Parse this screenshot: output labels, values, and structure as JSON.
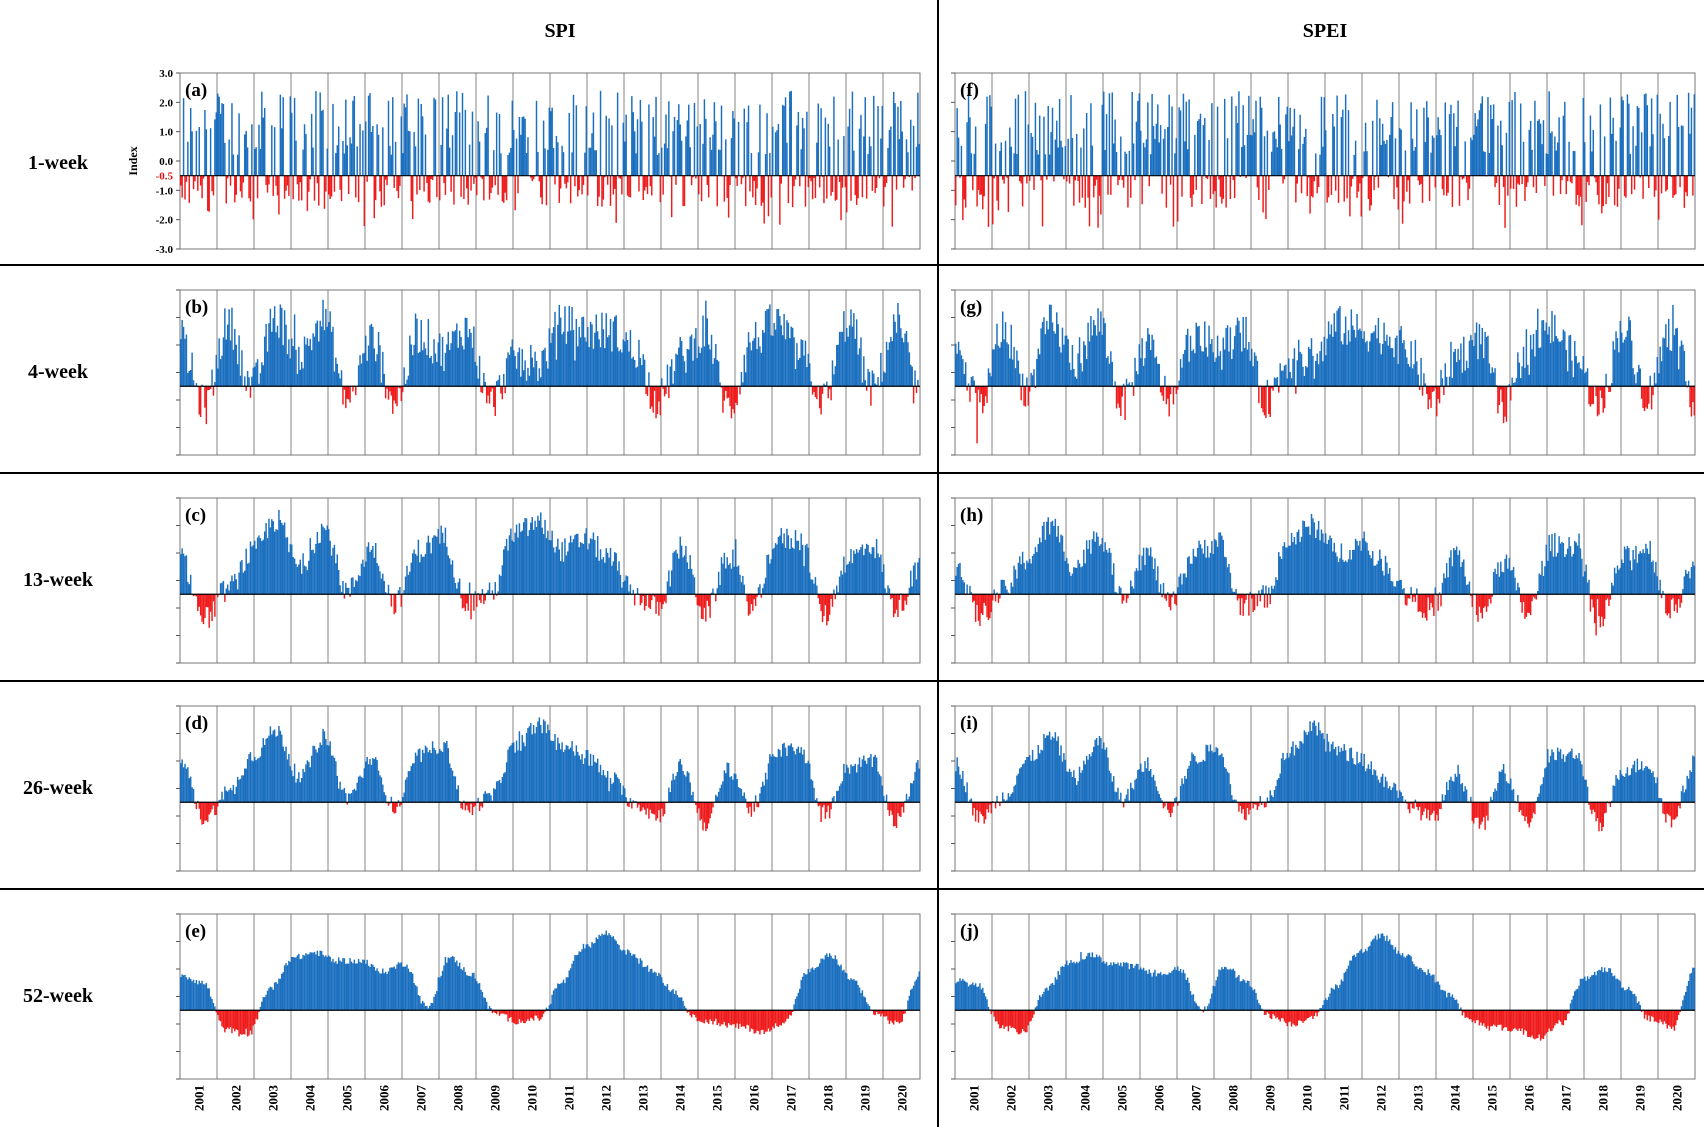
{
  "figure": {
    "column_titles": [
      "SPI",
      "SPEI"
    ],
    "row_labels": [
      "1-week",
      "4-week",
      "13-week",
      "26-week",
      "52-week"
    ],
    "panel_letters": [
      [
        "(a)",
        "(b)",
        "(c)",
        "(d)",
        "(e)"
      ],
      [
        "(f)",
        "(g)",
        "(h)",
        "(i)",
        "(j)"
      ]
    ],
    "y_axis_label": "Index",
    "y_ticks": [
      "3.0",
      "2.0",
      "1.0",
      "0.0",
      "-1.0",
      "-2.0",
      "-3.0"
    ],
    "threshold_label": "-0.5",
    "years": [
      "2001",
      "2002",
      "2003",
      "2004",
      "2005",
      "2006",
      "2007",
      "2008",
      "2009",
      "2010",
      "2011",
      "2012",
      "2013",
      "2014",
      "2015",
      "2016",
      "2017",
      "2018",
      "2019",
      "2020"
    ],
    "colors": {
      "wet": "#1a6fbf",
      "dry": "#ee1c1c",
      "threshold_text": "#e01010"
    }
  },
  "chart_data": {
    "type": "bar",
    "x_axis": "week (2001-2020)",
    "ylim": [
      -3.0,
      3.0
    ],
    "baseline": -0.5,
    "note": "Bars extend from the -0.5 threshold line: blue above, red below. Values are weekly index values at approximately 2-week resolution; series below are anchor points per ~2 months, estimated from the figure envelope.",
    "series": [
      {
        "name": "SPI 1-week",
        "panel": "(a)",
        "anchors": [
          1.2,
          -0.9,
          1.8,
          -1.0,
          1.5,
          -1.2,
          1.9,
          -0.8,
          1.4,
          -1.1,
          1.7,
          -1.0,
          1.6,
          -0.9,
          1.3,
          -1.2,
          1.8,
          -1.0,
          1.5,
          -1.1,
          1.6,
          -0.9,
          1.4,
          -1.0
        ]
      },
      {
        "name": "SPI 4-week",
        "panel": "(b)",
        "anchors": [
          1.0,
          -1.2,
          1.8,
          -0.5,
          2.0,
          0.6,
          2.0,
          -1.0,
          1.2,
          -1.0,
          1.4,
          0.8,
          1.6,
          -1.1,
          0.5,
          0.3,
          1.8,
          1.5,
          1.5,
          0.9,
          -1.0,
          0.6,
          1.5,
          -1.3,
          1.2,
          1.8,
          0.6,
          -1.0,
          1.9,
          -0.6,
          1.6,
          -0.8
        ]
      },
      {
        "name": "SPI 13-week",
        "panel": "(c)",
        "anchors": [
          0.8,
          -1.4,
          -0.3,
          1.0,
          2.2,
          0.5,
          1.9,
          -0.4,
          1.2,
          -0.8,
          1.1,
          1.6,
          -0.8,
          -0.5,
          1.7,
          2.1,
          1.1,
          1.5,
          0.8,
          -0.5,
          -1.0,
          1.2,
          -1.2,
          0.9,
          -1.0,
          1.5,
          1.5,
          -1.3,
          0.8,
          1.3,
          -1.0,
          0.4
        ]
      },
      {
        "name": "SPI 26-week",
        "panel": "(d)",
        "anchors": [
          1.0,
          -1.1,
          -0.2,
          1.2,
          2.1,
          0.4,
          1.9,
          -0.3,
          1.0,
          -0.7,
          1.2,
          1.6,
          -0.8,
          -0.3,
          1.5,
          2.3,
          1.6,
          1.2,
          0.4,
          -0.5,
          -1.0,
          0.8,
          -1.3,
          0.7,
          -0.8,
          1.4,
          1.4,
          -1.0,
          0.8,
          1.0,
          -1.2,
          0.8
        ]
      },
      {
        "name": "SPI 52-week",
        "panel": "(e)",
        "anchors": [
          0.8,
          0.5,
          -1.2,
          -1.4,
          0.3,
          1.4,
          1.6,
          1.3,
          1.3,
          0.9,
          1.2,
          -0.4,
          1.4,
          0.8,
          -0.6,
          -0.9,
          -0.8,
          0.5,
          1.8,
          2.3,
          1.6,
          1.0,
          0.2,
          -0.8,
          -1.0,
          -1.1,
          -1.3,
          -0.9,
          0.9,
          1.5,
          0.6,
          -0.6,
          -1.0,
          0.8
        ]
      },
      {
        "name": "SPEI 1-week",
        "panel": "(f)",
        "anchors": [
          1.0,
          -1.1,
          1.5,
          -1.3,
          1.4,
          -1.2,
          1.7,
          -0.9,
          1.3,
          -1.2,
          1.6,
          -1.0,
          1.8,
          -0.9,
          1.4,
          -1.3,
          1.7,
          -1.0,
          1.5,
          -1.2,
          1.6,
          -1.1,
          1.5,
          -1.1
        ]
      },
      {
        "name": "SPEI 4-week",
        "panel": "(g)",
        "anchors": [
          0.8,
          -1.2,
          1.6,
          -0.6,
          1.8,
          0.5,
          1.8,
          -1.1,
          1.0,
          -1.0,
          1.4,
          0.8,
          1.5,
          -1.0,
          0.5,
          0.4,
          1.7,
          1.5,
          1.4,
          0.8,
          -1.1,
          0.6,
          1.2,
          -1.4,
          1.0,
          1.6,
          0.5,
          -1.2,
          1.7,
          -0.8,
          1.5,
          -1.0
        ]
      },
      {
        "name": "SPEI 13-week",
        "panel": "(h)",
        "anchors": [
          0.6,
          -1.3,
          -0.4,
          0.8,
          2.0,
          0.5,
          1.7,
          -0.5,
          1.0,
          -0.9,
          1.0,
          1.4,
          -0.9,
          -0.6,
          1.5,
          2.0,
          1.0,
          1.3,
          0.6,
          -0.6,
          -1.1,
          1.0,
          -1.3,
          0.7,
          -1.2,
          1.3,
          1.3,
          -1.6,
          0.8,
          1.2,
          -1.1,
          0.5
        ]
      },
      {
        "name": "SPEI 26-week",
        "panel": "(i)",
        "anchors": [
          0.9,
          -1.1,
          -0.3,
          1.0,
          1.9,
          0.4,
          1.7,
          -0.4,
          0.9,
          -0.8,
          1.1,
          1.5,
          -0.9,
          -0.4,
          1.4,
          2.2,
          1.4,
          1.1,
          0.3,
          -0.6,
          -1.1,
          0.6,
          -1.4,
          0.6,
          -1.2,
          1.2,
          1.2,
          -1.4,
          0.7,
          0.9,
          -1.2,
          0.9
        ]
      },
      {
        "name": "SPEI 52-week",
        "panel": "(j)",
        "anchors": [
          0.6,
          0.4,
          -1.1,
          -1.3,
          0.2,
          1.2,
          1.5,
          1.2,
          1.1,
          0.8,
          1.0,
          -0.5,
          1.1,
          0.5,
          -0.7,
          -1.0,
          -0.7,
          0.4,
          1.6,
          2.2,
          1.5,
          0.9,
          0.1,
          -0.9,
          -1.1,
          -1.2,
          -1.5,
          -1.0,
          0.6,
          1.0,
          0.3,
          -0.8,
          -1.1,
          1.0
        ]
      }
    ]
  }
}
